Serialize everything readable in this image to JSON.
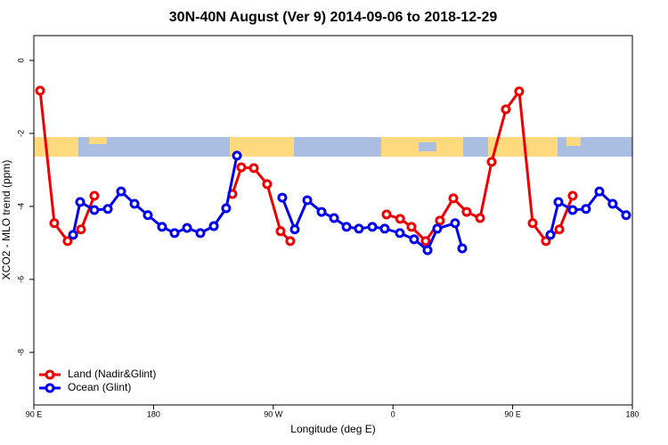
{
  "chart_data": {
    "type": "line",
    "title": "30N-40N August (Ver 9)   2014-09-06 to 2018-12-29",
    "xlabel": "Longitude (deg E)",
    "ylabel": "XCO2 - MLO trend (ppm)",
    "xlim": [
      90,
      540
    ],
    "ylim": [
      -9.44,
      0.68
    ],
    "xticks": [
      {
        "value": 90,
        "label": "90 E"
      },
      180,
      {
        "value": 270,
        "label": "90 W"
      },
      {
        "value": 360,
        "label": "0"
      },
      {
        "value": 450,
        "label": "90 E"
      },
      {
        "value": 540,
        "label": "180"
      }
    ],
    "yticks": [
      0,
      -2,
      -4,
      -6,
      -8
    ],
    "legend": "bottom-left",
    "series": [
      {
        "name": "Land (Nadir&Glint)",
        "color": "#ee0000",
        "x": [
          94.7,
          105.4,
          115.4,
          125.5,
          135.5,
          null,
          239.3,
          246,
          255.4,
          265.4,
          275.5,
          282.8,
          null,
          355.2,
          365.4,
          373.9,
          384.6,
          395.3,
          405.4,
          415.4,
          425.5,
          434.2,
          444.9,
          454.9,
          465,
          475,
          485.1,
          495.1
        ],
        "values": [
          -0.83,
          -4.46,
          -4.95,
          -4.63,
          -3.71,
          null,
          -3.66,
          -2.93,
          -2.95,
          -3.39,
          -4.68,
          -4.95,
          null,
          -4.22,
          -4.34,
          -4.56,
          -4.95,
          -4.39,
          -3.78,
          -4.15,
          -4.32,
          -2.78,
          -1.34,
          -0.85,
          -4.46,
          -4.95,
          -4.63,
          -3.71
        ]
      },
      {
        "name": "Ocean (Glint)",
        "color": "#0000ee",
        "x": [
          119.5,
          124.8,
          135.5,
          145.6,
          155.6,
          165.7,
          175.7,
          186.4,
          195.8,
          205.2,
          215.2,
          225.3,
          234.6,
          242.7,
          null,
          276.8,
          286.2,
          295.6,
          306.3,
          315.7,
          325.1,
          334.4,
          344.5,
          353.8,
          365.2,
          375.9,
          386,
          393.3,
          406.7,
          412.1,
          null,
          478.4,
          484.4,
          495.1,
          505.1,
          515.2,
          525.2,
          535.3
        ],
        "values": [
          -4.78,
          -3.88,
          -4.1,
          -4.07,
          -3.59,
          -3.93,
          -4.24,
          -4.56,
          -4.73,
          -4.59,
          -4.73,
          -4.54,
          -4.05,
          -2.61,
          null,
          -3.76,
          -4.63,
          -3.83,
          -4.15,
          -4.32,
          -4.56,
          -4.61,
          -4.56,
          -4.61,
          -4.73,
          -4.9,
          -5.2,
          -4.61,
          -4.46,
          -5.15,
          null,
          -4.78,
          -3.88,
          -4.1,
          -4.07,
          -3.59,
          -3.93,
          -4.24
        ]
      }
    ]
  }
}
